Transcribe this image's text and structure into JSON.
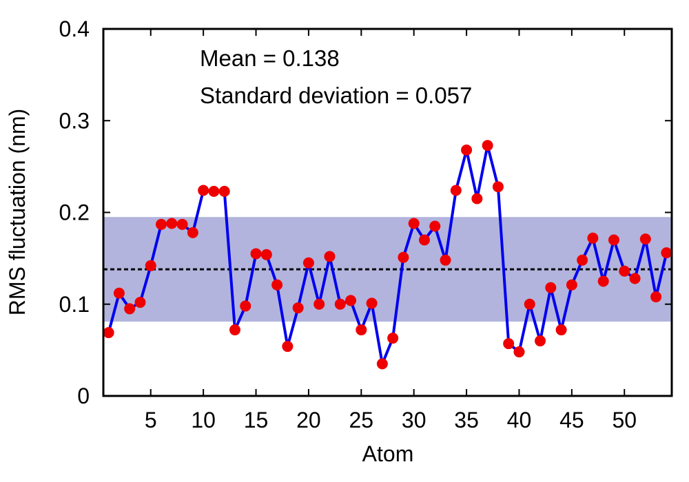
{
  "chart_data": {
    "type": "line",
    "xlabel": "Atom",
    "ylabel": "RMS fluctuation (nm)",
    "xlim": [
      0.5,
      54.5
    ],
    "ylim": [
      0,
      0.4
    ],
    "x_ticks": [
      5,
      10,
      15,
      20,
      25,
      30,
      35,
      40,
      45,
      50
    ],
    "x_tick_labels": [
      "5",
      "10",
      "15",
      "20",
      "25",
      "30",
      "35",
      "40",
      "45",
      "50"
    ],
    "y_ticks": [
      0,
      0.1,
      0.2,
      0.3,
      0.4
    ],
    "y_tick_labels": [
      "0",
      "0.1",
      "0.2",
      "0.3",
      "0.4"
    ],
    "grid": false,
    "annotations": [
      "Mean = 0.138",
      "Standard deviation = 0.057"
    ],
    "mean": 0.138,
    "std": 0.057,
    "colors": {
      "line": "#0000ee",
      "marker": "#ee0000",
      "band": "#b2b4dd",
      "mean_line": "#000000"
    },
    "series": [
      {
        "x": [
          1,
          2,
          3,
          4,
          5,
          6,
          7,
          8,
          9,
          10,
          11,
          12,
          13,
          14,
          15,
          16,
          17,
          18,
          19,
          20,
          21,
          22,
          23,
          24,
          25,
          26,
          27,
          28,
          29,
          30,
          31,
          32,
          33,
          34,
          35,
          36,
          37,
          38,
          39,
          40,
          41,
          42,
          43,
          44,
          45,
          46,
          47,
          48,
          49,
          50,
          51,
          52,
          53,
          54
        ],
        "values": [
          0.069,
          0.112,
          0.095,
          0.102,
          0.142,
          0.187,
          0.188,
          0.187,
          0.178,
          0.224,
          0.223,
          0.223,
          0.072,
          0.098,
          0.155,
          0.154,
          0.121,
          0.054,
          0.096,
          0.145,
          0.1,
          0.152,
          0.1,
          0.104,
          0.072,
          0.101,
          0.035,
          0.063,
          0.151,
          0.188,
          0.17,
          0.185,
          0.148,
          0.224,
          0.268,
          0.215,
          0.273,
          0.228,
          0.057,
          0.048,
          0.1,
          0.06,
          0.118,
          0.072,
          0.121,
          0.148,
          0.172,
          0.125,
          0.17,
          0.136,
          0.128,
          0.171,
          0.108,
          0.156
        ]
      }
    ]
  }
}
